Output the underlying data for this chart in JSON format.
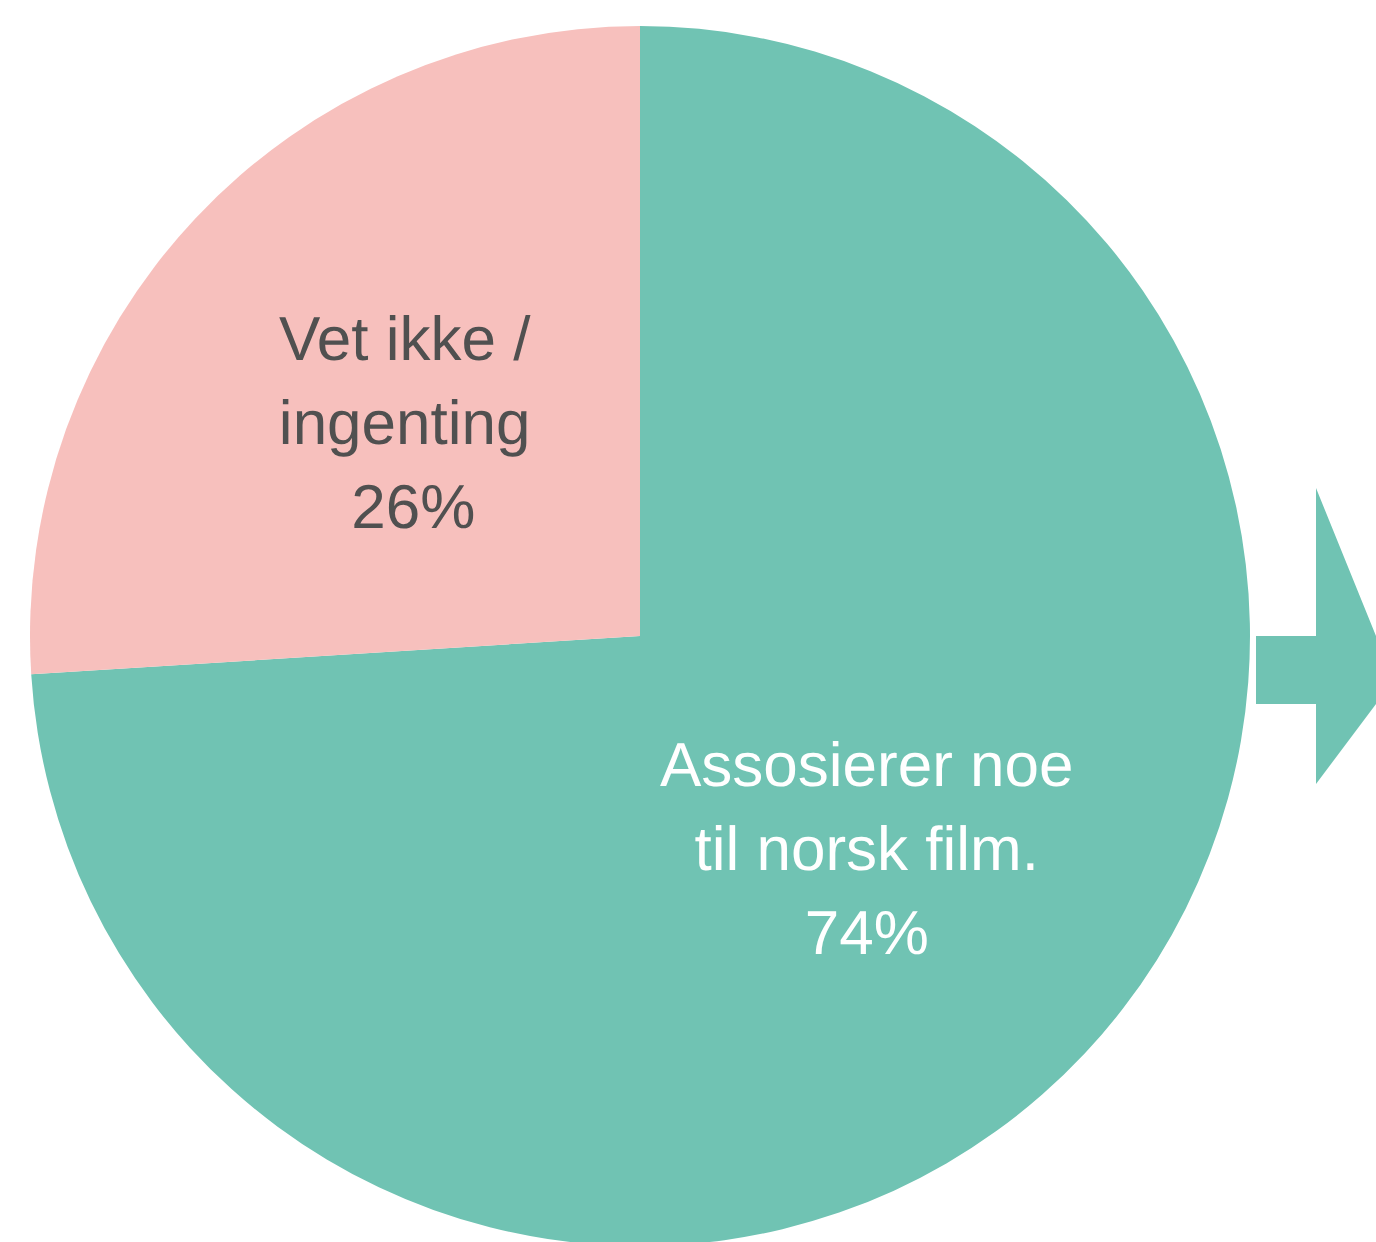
{
  "chart_data": {
    "type": "pie",
    "categories": [
      "Assosierer noe til norsk film.",
      "Vet ikke / ingenting"
    ],
    "values": [
      74,
      26
    ],
    "colors": [
      "#70c3b3",
      "#f7c0bd"
    ],
    "value_labels": [
      "74%",
      "26%"
    ],
    "legend": false
  }
}
